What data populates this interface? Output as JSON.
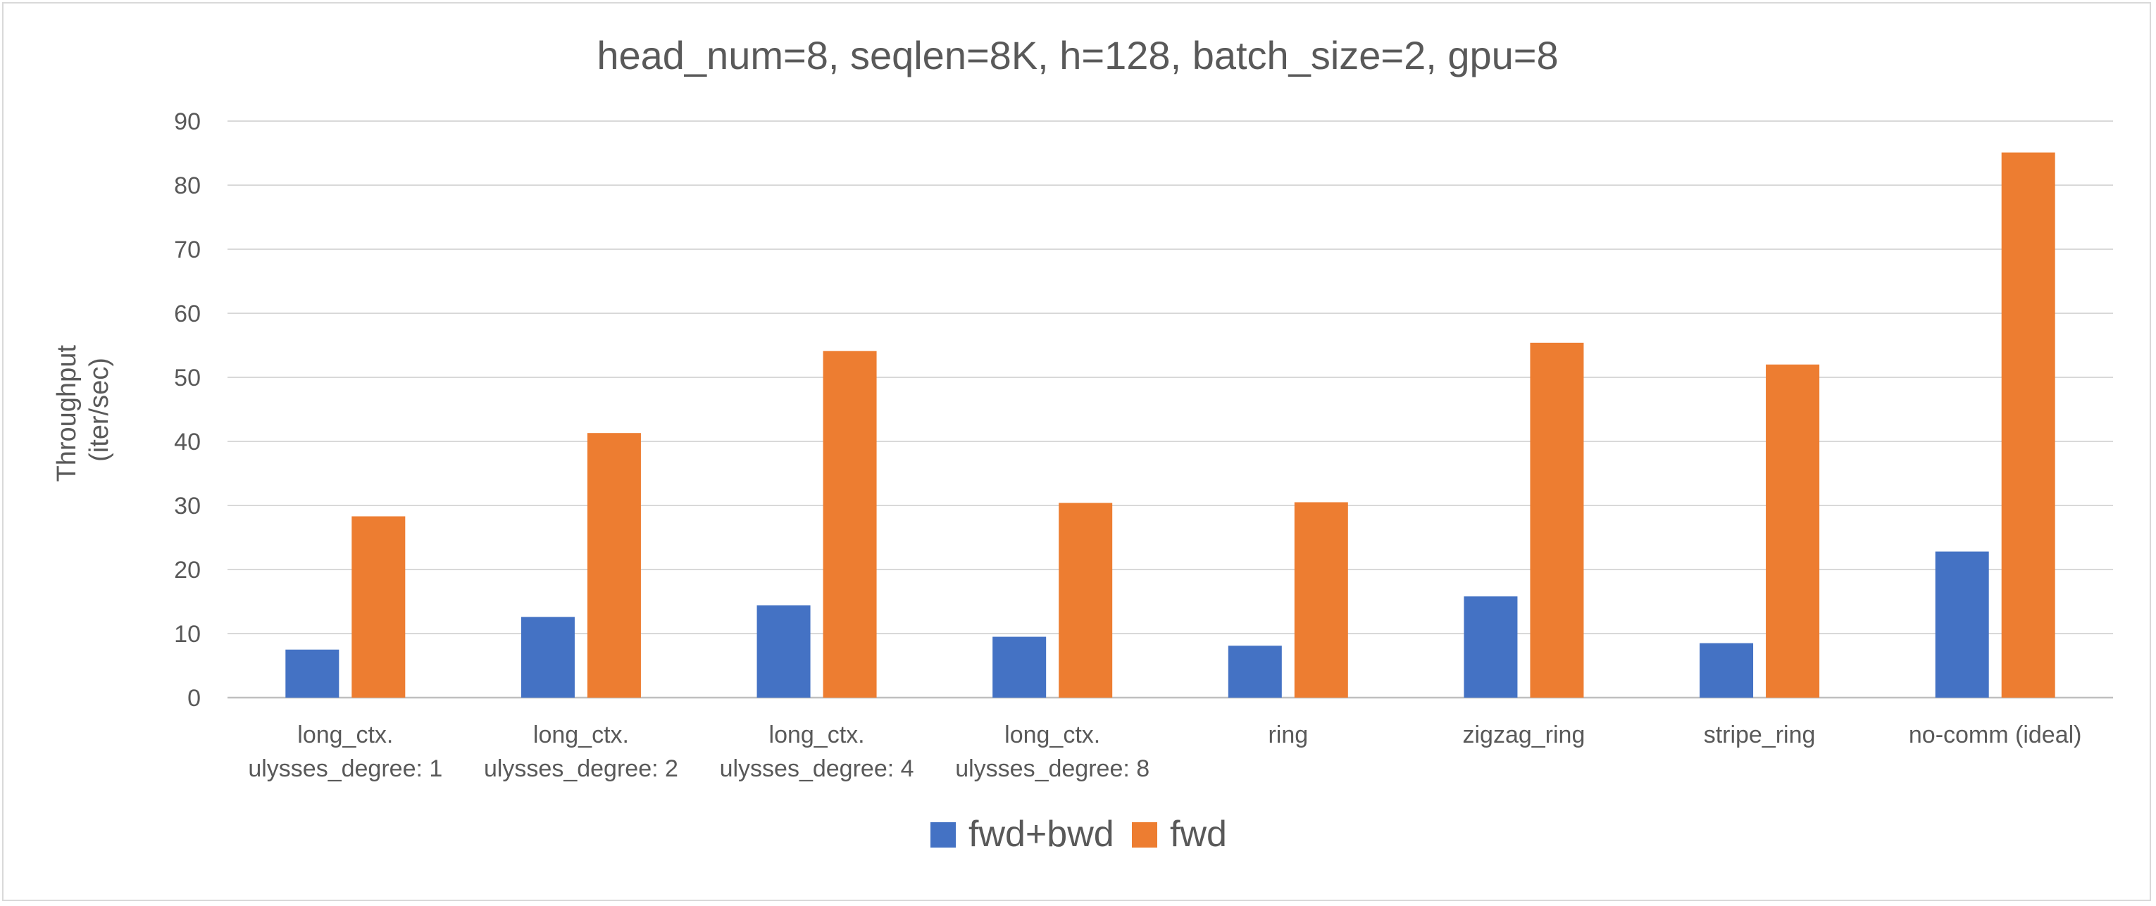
{
  "chart_data": {
    "type": "bar",
    "title": "head_num=8, seqlen=8K, h=128, batch_size=2, gpu=8",
    "ylabel_lines": [
      "Throughput",
      "(iter/sec)"
    ],
    "xlabel": "",
    "ylim": [
      0,
      90
    ],
    "yticks": [
      "0",
      "10",
      "20",
      "30",
      "40",
      "50",
      "60",
      "70",
      "80",
      "90"
    ],
    "grid": true,
    "legend_position": "bottom",
    "categories": [
      [
        "long_ctx.",
        "ulysses_degree: 1"
      ],
      [
        "long_ctx.",
        "ulysses_degree: 2"
      ],
      [
        "long_ctx.",
        "ulysses_degree: 4"
      ],
      [
        "long_ctx.",
        "ulysses_degree: 8"
      ],
      [
        "ring"
      ],
      [
        "zigzag_ring"
      ],
      [
        "stripe_ring"
      ],
      [
        "no-comm (ideal)"
      ]
    ],
    "series": [
      {
        "name": "fwd+bwd",
        "color": "#4472c4",
        "values": [
          7.5,
          12.6,
          14.4,
          9.5,
          8.1,
          15.8,
          8.5,
          22.8
        ]
      },
      {
        "name": "fwd",
        "color": "#ed7d31",
        "values": [
          28.3,
          41.3,
          54.1,
          30.4,
          30.5,
          55.4,
          52.0,
          85.1
        ]
      }
    ]
  }
}
